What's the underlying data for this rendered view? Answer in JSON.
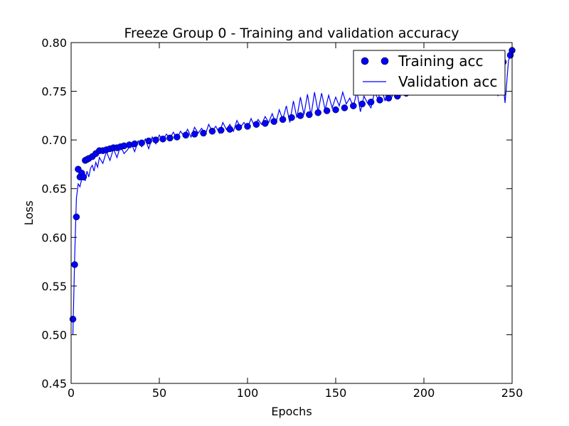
{
  "chart_data": {
    "type": "line",
    "title": "Freeze Group 0 - Training and validation accuracy",
    "xlabel": "Epochs",
    "ylabel": "Loss",
    "xlim": [
      0,
      250
    ],
    "ylim": [
      0.45,
      0.8
    ],
    "xticks": [
      0,
      50,
      100,
      150,
      200,
      250
    ],
    "yticks": [
      0.45,
      0.5,
      0.55,
      0.6,
      0.65,
      0.7,
      0.75,
      0.8
    ],
    "grid": false,
    "legend_position": "top-right",
    "series_colors": {
      "training": "#0000ff",
      "validation": "#0000ff"
    },
    "series": [
      {
        "name": "Training acc",
        "style": "markers",
        "x": [
          1,
          2,
          3,
          4,
          5,
          6,
          7,
          8,
          9,
          10,
          12,
          14,
          16,
          18,
          20,
          22,
          24,
          26,
          28,
          30,
          33,
          36,
          40,
          44,
          48,
          52,
          56,
          60,
          65,
          70,
          75,
          80,
          85,
          90,
          95,
          100,
          105,
          110,
          115,
          120,
          125,
          130,
          135,
          140,
          145,
          150,
          155,
          160,
          165,
          170,
          175,
          180,
          185,
          190,
          195,
          200,
          205,
          210,
          215,
          220,
          225,
          230,
          235,
          240,
          245,
          249,
          250
        ],
        "y": [
          0.516,
          0.572,
          0.621,
          0.67,
          0.662,
          0.666,
          0.662,
          0.679,
          0.68,
          0.681,
          0.683,
          0.686,
          0.689,
          0.689,
          0.69,
          0.691,
          0.692,
          0.692,
          0.693,
          0.694,
          0.695,
          0.696,
          0.697,
          0.699,
          0.7,
          0.701,
          0.702,
          0.703,
          0.705,
          0.706,
          0.707,
          0.709,
          0.71,
          0.711,
          0.713,
          0.714,
          0.716,
          0.717,
          0.719,
          0.721,
          0.723,
          0.725,
          0.726,
          0.728,
          0.73,
          0.731,
          0.733,
          0.735,
          0.737,
          0.739,
          0.741,
          0.743,
          0.745,
          0.748,
          0.75,
          0.752,
          0.754,
          0.757,
          0.76,
          0.762,
          0.765,
          0.768,
          0.771,
          0.775,
          0.78,
          0.787,
          0.792
        ]
      },
      {
        "name": "Validation acc",
        "style": "line",
        "x": [
          1,
          2,
          3,
          4,
          5,
          6,
          7,
          8,
          9,
          10,
          11,
          12,
          13,
          14,
          15,
          16,
          18,
          20,
          22,
          24,
          26,
          28,
          30,
          32,
          34,
          36,
          38,
          40,
          42,
          44,
          46,
          48,
          50,
          52,
          54,
          56,
          58,
          60,
          62,
          64,
          66,
          68,
          70,
          72,
          74,
          76,
          78,
          80,
          82,
          84,
          86,
          88,
          90,
          92,
          94,
          96,
          98,
          100,
          102,
          104,
          106,
          108,
          110,
          112,
          114,
          116,
          118,
          120,
          122,
          124,
          126,
          128,
          130,
          132,
          134,
          136,
          138,
          140,
          142,
          144,
          146,
          148,
          150,
          152,
          154,
          156,
          158,
          160,
          162,
          164,
          166,
          168,
          170,
          172,
          174,
          176,
          178,
          180,
          182,
          184,
          186,
          188,
          190,
          192,
          194,
          196,
          198,
          200,
          202,
          204,
          206,
          208,
          210,
          212,
          214,
          216,
          218,
          220,
          222,
          224,
          226,
          228,
          230,
          232,
          234,
          236,
          238,
          240,
          242,
          244,
          246,
          248,
          250
        ],
        "y": [
          0.5,
          0.58,
          0.64,
          0.655,
          0.652,
          0.66,
          0.665,
          0.658,
          0.668,
          0.662,
          0.671,
          0.674,
          0.668,
          0.677,
          0.672,
          0.682,
          0.676,
          0.688,
          0.679,
          0.691,
          0.682,
          0.694,
          0.686,
          0.69,
          0.697,
          0.688,
          0.699,
          0.693,
          0.701,
          0.691,
          0.703,
          0.696,
          0.705,
          0.699,
          0.706,
          0.702,
          0.708,
          0.701,
          0.709,
          0.704,
          0.711,
          0.703,
          0.713,
          0.707,
          0.712,
          0.705,
          0.716,
          0.709,
          0.714,
          0.707,
          0.718,
          0.711,
          0.716,
          0.709,
          0.72,
          0.713,
          0.718,
          0.712,
          0.722,
          0.714,
          0.721,
          0.716,
          0.724,
          0.718,
          0.727,
          0.717,
          0.731,
          0.721,
          0.735,
          0.718,
          0.74,
          0.723,
          0.744,
          0.726,
          0.747,
          0.725,
          0.749,
          0.729,
          0.748,
          0.731,
          0.746,
          0.733,
          0.744,
          0.735,
          0.749,
          0.737,
          0.743,
          0.734,
          0.75,
          0.729,
          0.745,
          0.738,
          0.733,
          0.749,
          0.742,
          0.753,
          0.74,
          0.756,
          0.745,
          0.758,
          0.748,
          0.761,
          0.75,
          0.763,
          0.753,
          0.766,
          0.755,
          0.768,
          0.757,
          0.771,
          0.759,
          0.773,
          0.762,
          0.775,
          0.764,
          0.777,
          0.766,
          0.779,
          0.768,
          0.781,
          0.77,
          0.783,
          0.772,
          0.784,
          0.773,
          0.786,
          0.775,
          0.788,
          0.745,
          0.776,
          0.738,
          0.782,
          0.79
        ]
      }
    ]
  }
}
